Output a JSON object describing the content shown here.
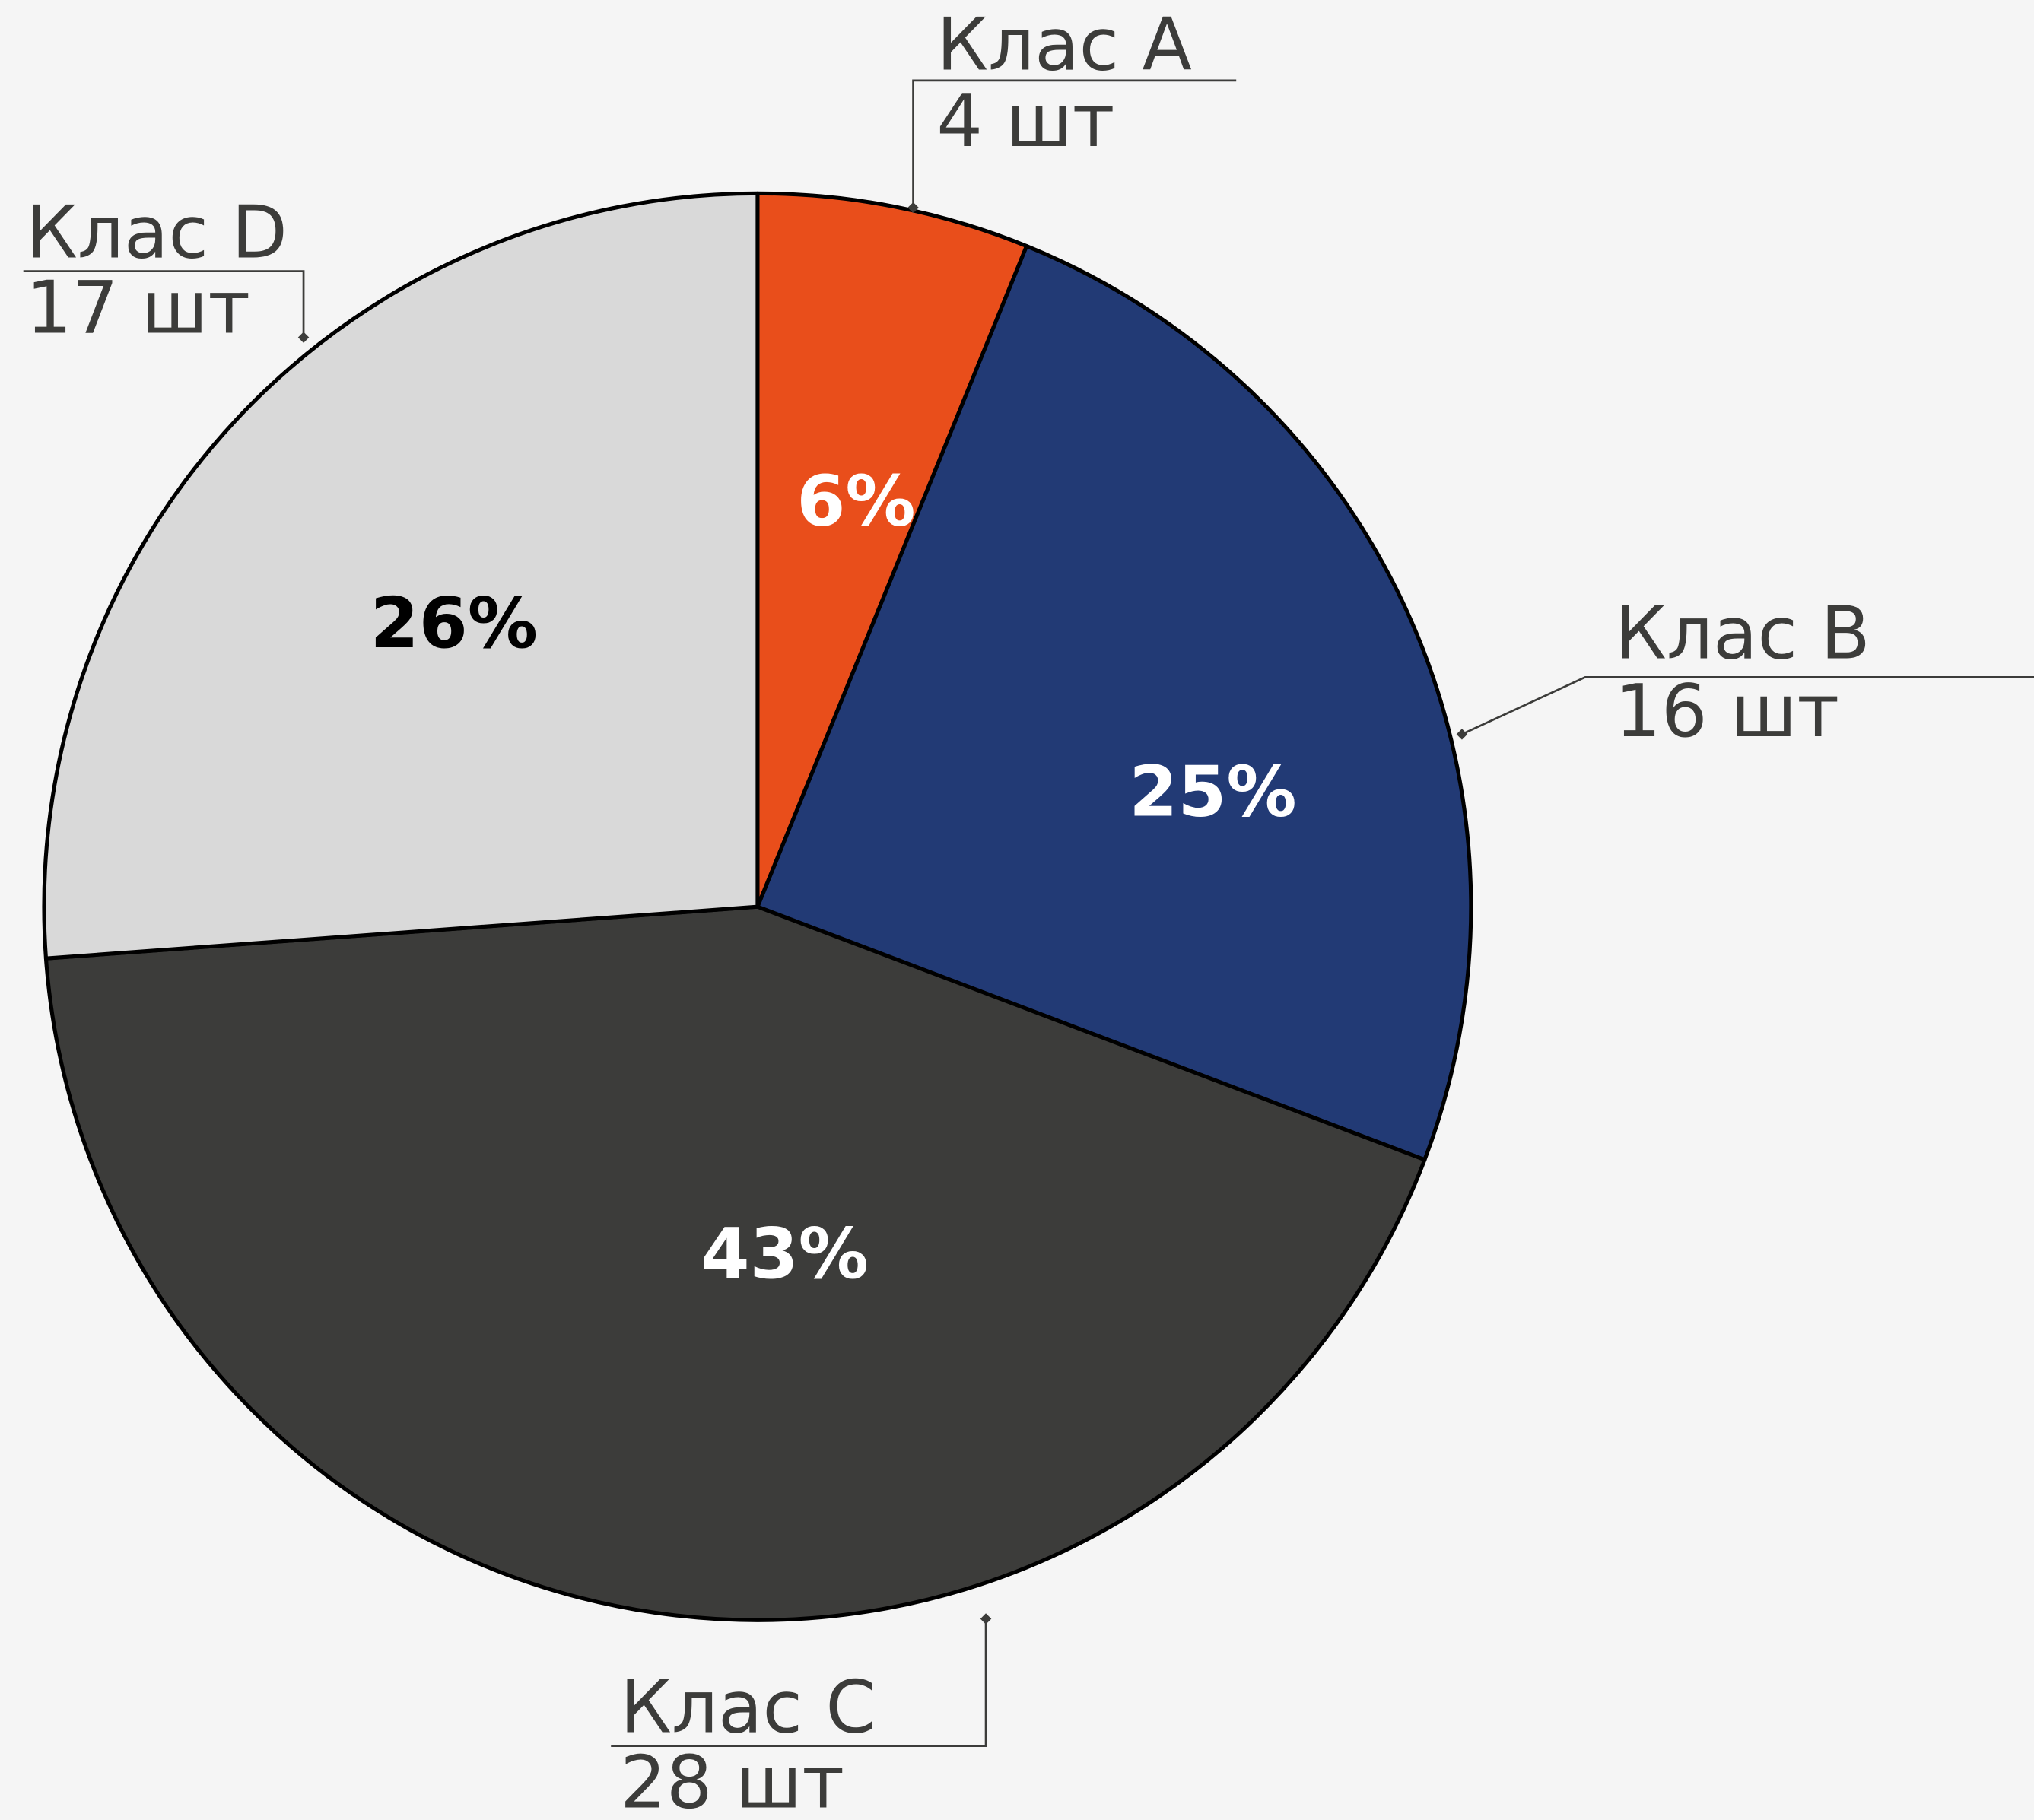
{
  "chart_data": {
    "type": "pie",
    "categories": [
      "Клас A",
      "Клас B",
      "Клас C",
      "Клас D"
    ],
    "values": [
      4,
      16,
      28,
      17
    ],
    "value_labels": [
      "4 шт",
      "16 шт",
      "28 шт",
      "17 шт"
    ],
    "percentages": [
      6,
      25,
      43,
      26
    ],
    "percent_labels": [
      "6%",
      "25%",
      "43%",
      "26%"
    ],
    "colors": [
      "#e94e1b",
      "#223a75",
      "#3c3c3a",
      "#d9d9d9"
    ],
    "percent_label_colors": [
      "#ffffff",
      "#ffffff",
      "#ffffff",
      "#000000"
    ]
  }
}
